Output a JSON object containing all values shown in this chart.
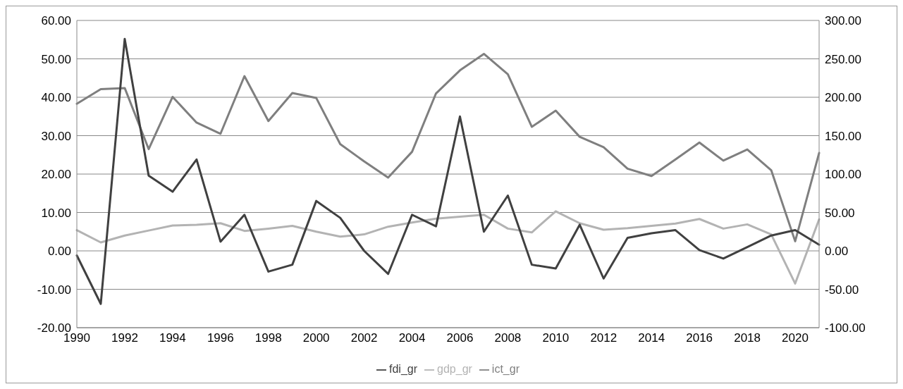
{
  "chart_data": {
    "type": "line",
    "categories": [
      "1990",
      null,
      "1992",
      null,
      "1994",
      null,
      "1996",
      null,
      "1998",
      null,
      "2000",
      null,
      "2002",
      null,
      "2004",
      null,
      "2006",
      null,
      "2008",
      null,
      "2010",
      null,
      "2012",
      null,
      "2014",
      null,
      "2016",
      null,
      "2018",
      null,
      "2020",
      null
    ],
    "series": [
      {
        "name": "gdp_gr",
        "color": "#b3b3b3",
        "values": [
          5.4,
          2.2,
          4.0,
          5.3,
          6.6,
          6.8,
          7.2,
          5.2,
          5.8,
          6.5,
          5.0,
          3.7,
          4.3,
          6.3,
          7.4,
          8.4,
          8.9,
          9.4,
          5.8,
          4.8,
          10.3,
          7.2,
          5.5,
          5.9,
          6.5,
          7.1,
          8.3,
          5.8,
          6.9,
          4.3,
          -8.5,
          8.2
        ]
      },
      {
        "name": "ict_gr",
        "color": "#7f7f7f",
        "values": [
          38.3,
          42.1,
          42.4,
          26.5,
          40.1,
          33.4,
          30.5,
          45.5,
          33.8,
          41.1,
          39.8,
          27.8,
          23.3,
          19.1,
          25.8,
          41.0,
          47.0,
          51.3,
          46.0,
          32.3,
          36.5,
          29.7,
          27.0,
          21.4,
          19.5,
          23.8,
          28.2,
          23.5,
          26.4,
          21.0,
          2.5,
          25.5
        ]
      },
      {
        "name": "fdi_gr",
        "color": "#404040",
        "axis": "y2",
        "values": [
          -6,
          -69,
          276,
          98,
          77,
          119,
          12,
          47,
          -27,
          -18,
          65,
          43,
          0,
          -30,
          47,
          32,
          175,
          25,
          72,
          -18,
          -23,
          34,
          -36,
          17,
          23,
          27,
          1,
          -10,
          5,
          20,
          27,
          8
        ]
      }
    ],
    "ylim": [
      -20,
      60
    ],
    "yticks": [
      {
        "value": -20,
        "label": "-20.00"
      },
      {
        "value": -10,
        "label": "-10.00"
      },
      {
        "value": 0,
        "label": "0.00"
      },
      {
        "value": 10,
        "label": "10.00"
      },
      {
        "value": 20,
        "label": "20.00"
      },
      {
        "value": 30,
        "label": "30.00"
      },
      {
        "value": 40,
        "label": "40.00"
      },
      {
        "value": 50,
        "label": "50.00"
      },
      {
        "value": 60,
        "label": "60.00"
      }
    ],
    "y2lim": [
      -100,
      300
    ],
    "y2ticks": [
      {
        "value": -100,
        "label": "-100.00"
      },
      {
        "value": -50,
        "label": "-50.00"
      },
      {
        "value": 0,
        "label": "0.00"
      },
      {
        "value": 50,
        "label": "50.00"
      },
      {
        "value": 100,
        "label": "100.00"
      },
      {
        "value": 150,
        "label": "150.00"
      },
      {
        "value": 200,
        "label": "200.00"
      },
      {
        "value": 250,
        "label": "250.00"
      },
      {
        "value": 300,
        "label": "300.00"
      }
    ],
    "grid": "y",
    "legend": "bottom",
    "marker": "none",
    "line_style": "solid"
  }
}
